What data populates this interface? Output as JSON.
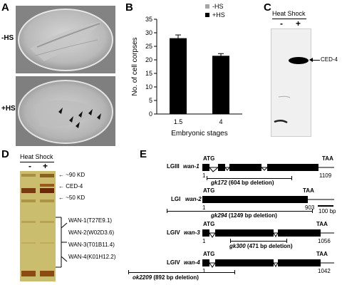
{
  "panels": {
    "A": {
      "label": "A",
      "rows": [
        {
          "label": "-HS"
        },
        {
          "label": "+HS"
        }
      ]
    },
    "B": {
      "label": "B"
    },
    "C": {
      "label": "C",
      "header": "Heat Shock",
      "lanes": [
        "-",
        "+"
      ],
      "band_label": "CED-4"
    },
    "D": {
      "label": "D",
      "header": "Heat Shock",
      "lanes": [
        "-",
        "+"
      ],
      "markers": [
        "~90 KD",
        "CED-4",
        "~50 KD"
      ],
      "bracket_labels": [
        "WAN-1(T27E9.1)",
        "WAN-2(W02D3.6)",
        "WAN-3(T01B11.4)",
        "WAN-4(K01H12.2)"
      ]
    },
    "E": {
      "label": "E",
      "scale_bar": "100 bp",
      "genes": [
        {
          "chrom": "LGIII",
          "name": "wan-1",
          "start": "ATG",
          "stop": "TAA",
          "pos_start": "1",
          "pos_end": "1109",
          "deletion_name": "gk172",
          "deletion_text": "(604 bp deletion)"
        },
        {
          "chrom": "LGI",
          "name": "wan-2",
          "start": "ATG",
          "stop": "TAA",
          "pos_start": "1",
          "pos_end": "903",
          "deletion_name": "gk294",
          "deletion_text": "(1249 bp deletion)"
        },
        {
          "chrom": "LGIV",
          "name": "wan-3",
          "start": "ATG",
          "stop": "TAA",
          "pos_start": "1",
          "pos_end": "1056",
          "deletion_name": "gk300",
          "deletion_text": "(471 bp deletion)"
        },
        {
          "chrom": "LGIV",
          "name": "wan-4",
          "start": "ATG",
          "stop": "TAA",
          "pos_start": "1",
          "pos_end": "1042",
          "deletion_name": "ok2209",
          "deletion_text": "(892 bp deletion)"
        }
      ]
    }
  },
  "chart_data": {
    "type": "bar",
    "categories": [
      "1.5",
      "4"
    ],
    "values": [
      28,
      21.5
    ],
    "errors": [
      1.2,
      0.8
    ],
    "ylabel": "No. of cell corpses",
    "xlabel": "Embryonic stages",
    "ylim": [
      0,
      35
    ],
    "yticks": [
      0,
      5,
      10,
      15,
      20,
      25,
      30,
      35
    ],
    "legend": [
      {
        "name": "-HS",
        "color": "#a6a6a6"
      },
      {
        "name": "+HS",
        "color": "#000000"
      }
    ],
    "legend_position": "top-right",
    "grid": false
  }
}
